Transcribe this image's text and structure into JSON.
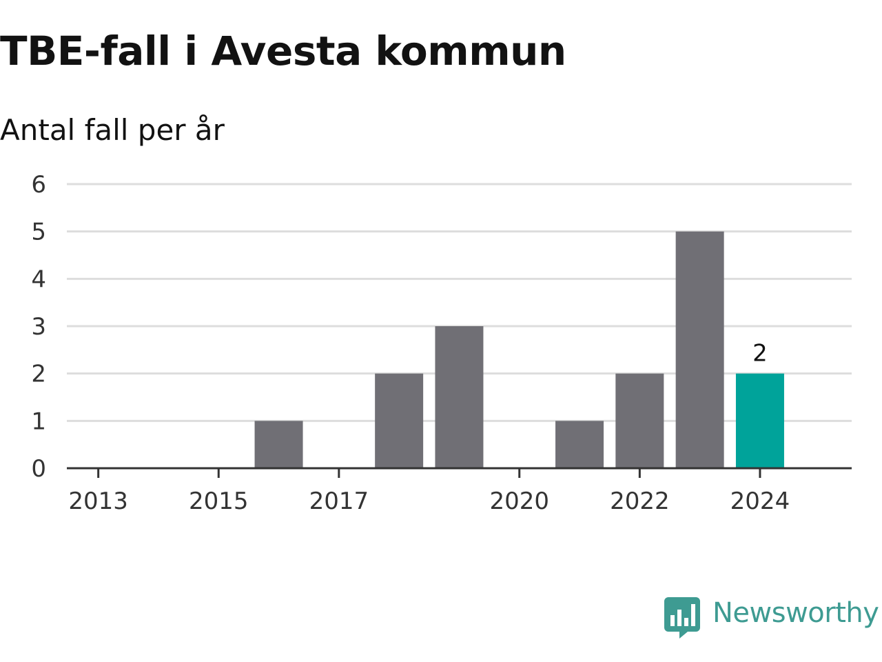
{
  "title": "TBE-fall i Avesta kommun",
  "subtitle": "Antal fall per år",
  "brand": {
    "name": "Newsworthy",
    "icon": "newsworthy-logo-icon",
    "color": "#3e9b92"
  },
  "colors": {
    "bar": "#706f75",
    "highlight": "#00a39a",
    "grid": "#dddddd",
    "axis": "#333333"
  },
  "chart_data": {
    "type": "bar",
    "categories": [
      "2013",
      "2014",
      "2015",
      "2016",
      "2017",
      "2018",
      "2019",
      "2020",
      "2021",
      "2022",
      "2023",
      "2024"
    ],
    "x_tick_labels": [
      "2013",
      "2015",
      "2017",
      "2020",
      "2022",
      "2024"
    ],
    "values": [
      0,
      0,
      0,
      1,
      0,
      2,
      3,
      0,
      1,
      2,
      5,
      2
    ],
    "highlight_category": "2024",
    "data_labels": [
      {
        "category": "2024",
        "text": "2"
      }
    ],
    "title": "TBE-fall i Avesta kommun",
    "subtitle": "Antal fall per år",
    "xlabel": "",
    "ylabel": "",
    "ylim": [
      0,
      6
    ],
    "yticks": [
      "0",
      "1",
      "2",
      "3",
      "4",
      "5",
      "6"
    ],
    "grid": true,
    "legend": "none"
  }
}
